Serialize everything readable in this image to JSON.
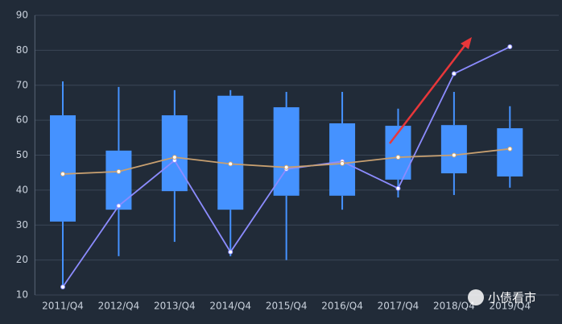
{
  "chart_data": {
    "type": "boxplot",
    "categories": [
      "2011/Q4",
      "2012/Q4",
      "2013/Q4",
      "2014/Q4",
      "2015/Q4",
      "2016/Q4",
      "2017/Q4",
      "2018/Q4",
      "2019/Q4"
    ],
    "boxes": {
      "color": "#4592ff",
      "low": [
        12.1,
        21.1,
        25.2,
        21.1,
        20.0,
        34.4,
        37.9,
        38.6,
        40.7
      ],
      "q1": [
        31.0,
        34.4,
        39.7,
        34.4,
        38.4,
        38.4,
        43.0,
        44.8,
        43.9
      ],
      "q3": [
        61.4,
        51.3,
        61.4,
        67.0,
        63.7,
        59.1,
        58.4,
        58.6,
        57.7
      ],
      "high": [
        71.1,
        69.5,
        68.6,
        68.6,
        68.1,
        68.1,
        63.3,
        68.1,
        64.0
      ]
    },
    "lines": [
      {
        "color": "#8c8cff",
        "values": [
          12.3,
          35.5,
          48.5,
          22.3,
          46.0,
          48.2,
          40.5,
          73.3,
          81.0
        ]
      },
      {
        "color": "#c8a070",
        "values": [
          44.6,
          45.3,
          49.4,
          47.5,
          46.5,
          47.6,
          49.4,
          50.0,
          51.8
        ]
      }
    ],
    "ylim": [
      10,
      90
    ],
    "yticks": [
      10,
      20,
      30,
      40,
      50,
      60,
      70,
      80,
      90
    ],
    "grid": true
  },
  "watermark": "小债看市"
}
